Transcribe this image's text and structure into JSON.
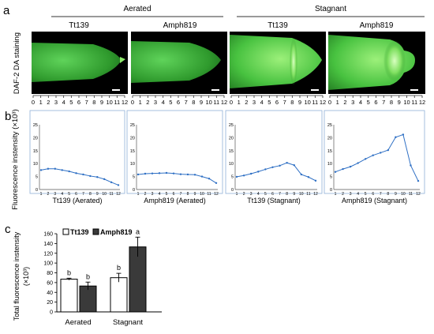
{
  "panel_a": {
    "label": "a",
    "group_headers": [
      "Aerated",
      "Stagnant"
    ],
    "image_titles": [
      "Tt139",
      "Amph819",
      "Tt139",
      "Amph819"
    ],
    "ylabel": "DAF-2 DA staining",
    "scale_ticks": [
      "0",
      "1",
      "2",
      "3",
      "4",
      "5",
      "6",
      "7",
      "8",
      "9",
      "10",
      "11",
      "12"
    ],
    "colors": {
      "background": "#000000",
      "fluor": "#3ec43e",
      "bright": "#b8ff9a"
    }
  },
  "panel_b": {
    "label": "b",
    "ylabel": "Fluorescence instensity (×10³)",
    "line_color": "#2e6fc4",
    "chart_data": [
      {
        "type": "line",
        "xlabel": "Tt139 (Aerated)",
        "x": [
          1,
          2,
          3,
          4,
          5,
          6,
          7,
          8,
          9,
          10,
          11,
          12
        ],
        "y": [
          7.5,
          8,
          8,
          7.5,
          7,
          6.3,
          5.8,
          5.2,
          4.8,
          4,
          2.8,
          1.7
        ],
        "xlim": [
          1,
          12
        ],
        "ylim": [
          0,
          25
        ],
        "yticks": [
          0,
          5,
          10,
          15,
          20,
          25
        ],
        "grid": false
      },
      {
        "type": "line",
        "xlabel": "Amph819 (Aerated)",
        "x": [
          1,
          2,
          3,
          4,
          5,
          6,
          7,
          8,
          9,
          10,
          11,
          12
        ],
        "y": [
          5.8,
          6.1,
          6.2,
          6.3,
          6.4,
          6.2,
          5.9,
          5.8,
          5.7,
          5,
          4.2,
          2.5
        ],
        "xlim": [
          1,
          12
        ],
        "ylim": [
          0,
          25
        ],
        "yticks": [
          0,
          5,
          10,
          15,
          20,
          25
        ],
        "grid": false
      },
      {
        "type": "line",
        "xlabel": "Tt139 (Stagnant)",
        "x": [
          1,
          2,
          3,
          4,
          5,
          6,
          7,
          8,
          9,
          10,
          11,
          12
        ],
        "y": [
          4.9,
          5.4,
          6.1,
          6.9,
          7.8,
          8.6,
          9.2,
          10.3,
          9.4,
          5.8,
          4.8,
          3.4
        ],
        "xlim": [
          1,
          12
        ],
        "ylim": [
          0,
          25
        ],
        "yticks": [
          0,
          5,
          10,
          15,
          20,
          25
        ],
        "grid": false
      },
      {
        "type": "line",
        "xlabel": "Amph819 (Stagnant)",
        "x": [
          1,
          2,
          3,
          4,
          5,
          6,
          7,
          8,
          9,
          10,
          11,
          12
        ],
        "y": [
          6.8,
          7.9,
          8.8,
          10.2,
          11.8,
          13.2,
          14.2,
          15.2,
          20.2,
          21.2,
          9.3,
          3.3
        ],
        "xlim": [
          1,
          12
        ],
        "ylim": [
          0,
          25
        ],
        "yticks": [
          0,
          5,
          10,
          15,
          20,
          25
        ],
        "grid": false
      }
    ]
  },
  "panel_c": {
    "label": "c",
    "ylabel_line1": "Total fluorescence instensity",
    "ylabel_line2": "(×10³)",
    "legend": [
      "Tt139",
      "Amph819"
    ],
    "chart_data": {
      "type": "bar",
      "categories": [
        "Aerated",
        "Stagnant"
      ],
      "series": [
        {
          "name": "Tt139",
          "values": [
            67,
            70
          ],
          "errors": [
            2,
            9
          ],
          "letters": [
            "b",
            "b"
          ]
        },
        {
          "name": "Amph819",
          "values": [
            53,
            133
          ],
          "errors": [
            8,
            20
          ],
          "letters": [
            "b",
            "a"
          ]
        }
      ],
      "ylim": [
        0,
        160
      ],
      "yticks": [
        0,
        20,
        40,
        60,
        80,
        100,
        120,
        140,
        160
      ],
      "colors": [
        "#ffffff",
        "#3a3a3a"
      ]
    }
  }
}
